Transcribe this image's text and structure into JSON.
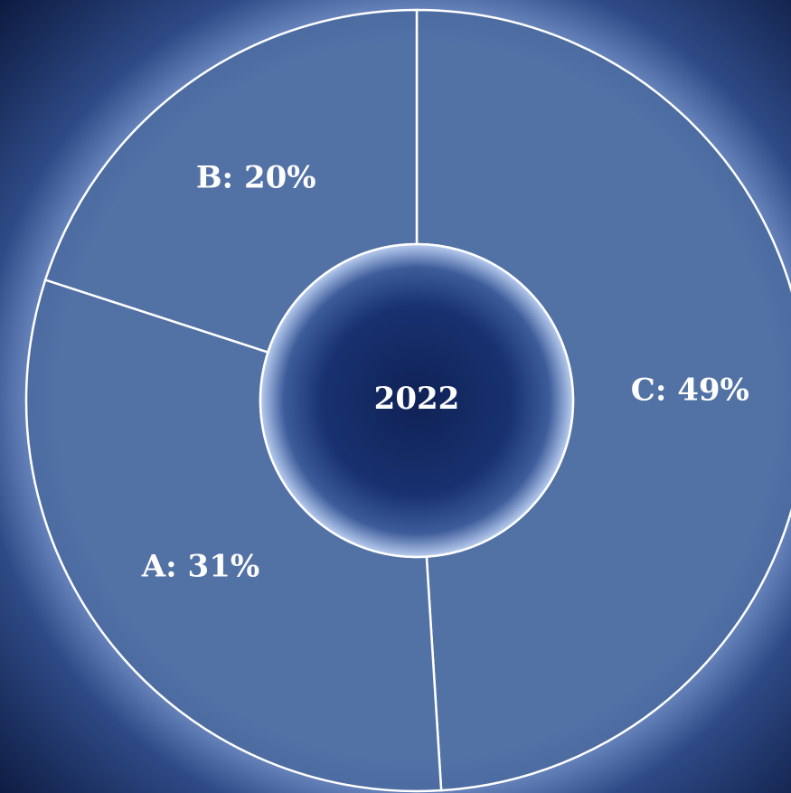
{
  "chart_data": {
    "type": "pie",
    "center_label": "2022",
    "values": [
      49,
      31,
      20
    ],
    "value_labels": [
      "C: 49%",
      "A: 31%",
      "B: 20%"
    ],
    "color": "#4b6aa0"
  }
}
